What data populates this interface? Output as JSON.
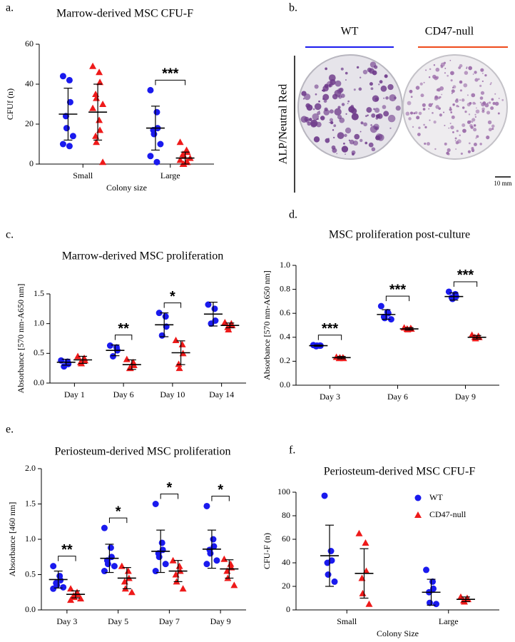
{
  "chart_data": [
    {
      "type": "dot",
      "panel": "a.",
      "title": "Marrow-derived MSC CFU-F",
      "xlabel": "Colony size",
      "ylabel": "CFUf (n)",
      "categories": [
        "Small",
        "Large"
      ],
      "ylim": [
        0,
        60
      ],
      "yticks": [
        0,
        20,
        40,
        60
      ],
      "series": [
        {
          "color": "#1a1aee",
          "marker": "circle",
          "points": [
            [
              44,
              42,
              31,
              24,
              18,
              14,
              10,
              9
            ],
            [
              37,
              26,
              18,
              17,
              15,
              10,
              4,
              1
            ]
          ],
          "mean": [
            25,
            18
          ],
          "sd": [
            13,
            11
          ]
        },
        {
          "color": "#ee1a1a",
          "marker": "triangle",
          "points": [
            [
              49,
              46,
              41,
              35,
              33,
              30,
              28,
              22,
              17,
              14,
              11,
              1
            ],
            [
              11,
              7,
              6,
              5,
              4,
              3,
              2,
              1,
              1,
              0,
              0
            ]
          ],
          "mean": [
            26,
            3
          ],
          "sd": [
            14,
            3
          ]
        }
      ],
      "significance": [
        null,
        "***"
      ]
    },
    {
      "type": "dot",
      "panel": "c.",
      "title": "Marrow-derived MSC proliferation",
      "ylabel": "Absorbance [570 nm-A650 nm]",
      "categories": [
        "Day 1",
        "Day 6",
        "Day 10",
        "Day 14"
      ],
      "ylim": [
        0,
        1.5
      ],
      "yticks": [
        {
          "value": 0,
          "label": "0.0"
        },
        0.5,
        {
          "value": 1,
          "label": "1.0"
        },
        1.5
      ],
      "series": [
        {
          "color": "#1a1aee",
          "marker": "circle",
          "points": [
            [
              0.38,
              0.36,
              0.32,
              0.28
            ],
            [
              0.63,
              0.6,
              0.55,
              0.45
            ],
            [
              1.18,
              1.12,
              0.95,
              0.8
            ],
            [
              1.32,
              1.25,
              1.05,
              1.0
            ]
          ],
          "mean": [
            0.35,
            0.55,
            0.98,
            1.16
          ],
          "sd": [
            0.05,
            0.09,
            0.2,
            0.2
          ]
        },
        {
          "color": "#ee1a1a",
          "marker": "triangle",
          "points": [
            [
              0.45,
              0.42,
              0.38,
              0.35,
              0.33
            ],
            [
              0.4,
              0.35,
              0.3,
              0.25,
              0.25
            ],
            [
              0.72,
              0.65,
              0.5,
              0.32,
              0.25
            ],
            [
              1.02,
              1.0,
              0.97,
              0.94,
              0.9
            ]
          ],
          "mean": [
            0.39,
            0.31,
            0.51,
            0.97
          ],
          "sd": [
            0.06,
            0.08,
            0.2,
            0.04
          ]
        }
      ],
      "significance": [
        null,
        "**",
        "*",
        null
      ]
    },
    {
      "type": "dot",
      "panel": "d.",
      "title": "MSC proliferation post-culture",
      "ylabel": "Absorbance [570 nm-A650 nm]",
      "categories": [
        "Day 3",
        "Day 6",
        "Day 9"
      ],
      "ylim": [
        0,
        1
      ],
      "yticks": [
        {
          "value": 0,
          "label": "0.0"
        },
        0.2,
        0.4,
        0.6,
        0.8,
        {
          "value": 1,
          "label": "1.0"
        }
      ],
      "series": [
        {
          "color": "#1a1aee",
          "marker": "circle",
          "points": [
            [
              0.335,
              0.33,
              0.33,
              0.325,
              0.33
            ],
            [
              0.66,
              0.61,
              0.6,
              0.57,
              0.56,
              0.55
            ],
            [
              0.78,
              0.76,
              0.74,
              0.73,
              0.72
            ]
          ],
          "mean": [
            0.33,
            0.59,
            0.74
          ],
          "sd": [
            0.005,
            0.04,
            0.03
          ]
        },
        {
          "color": "#ee1a1a",
          "marker": "triangle",
          "points": [
            [
              0.235,
              0.23,
              0.225,
              0.225,
              0.23
            ],
            [
              0.48,
              0.475,
              0.47,
              0.47,
              0.465
            ],
            [
              0.42,
              0.41,
              0.4,
              0.4,
              0.39
            ]
          ],
          "mean": [
            0.23,
            0.47,
            0.4
          ],
          "sd": [
            0.01,
            0.01,
            0.015
          ]
        }
      ],
      "significance": [
        "***",
        "***",
        "***"
      ]
    },
    {
      "type": "dot",
      "panel": "e.",
      "title": "Periosteum-derived MSC proliferation",
      "ylabel": "Absorbance [460 nm]",
      "categories": [
        "Day 3",
        "Day 5",
        "Day 7",
        "Day 9"
      ],
      "ylim": [
        0,
        2
      ],
      "yticks": [
        {
          "value": 0,
          "label": "0.0"
        },
        0.5,
        {
          "value": 1,
          "label": "1.0"
        },
        1.5,
        {
          "value": 2,
          "label": "2.0"
        }
      ],
      "series": [
        {
          "color": "#1a1aee",
          "marker": "circle",
          "points": [
            [
              0.62,
              0.48,
              0.42,
              0.38,
              0.35,
              0.32,
              0.3
            ],
            [
              1.16,
              0.88,
              0.75,
              0.7,
              0.65,
              0.62,
              0.55
            ],
            [
              1.5,
              0.95,
              0.85,
              0.8,
              0.75,
              0.65,
              0.55
            ],
            [
              1.47,
              1.0,
              0.9,
              0.85,
              0.8,
              0.7,
              0.65
            ]
          ],
          "mean": [
            0.43,
            0.73,
            0.83,
            0.86
          ],
          "sd": [
            0.12,
            0.2,
            0.3,
            0.27
          ]
        },
        {
          "color": "#ee1a1a",
          "marker": "triangle",
          "points": [
            [
              0.3,
              0.25,
              0.22,
              0.2,
              0.18,
              0.16,
              0.14
            ],
            [
              0.62,
              0.55,
              0.45,
              0.4,
              0.3,
              0.25
            ],
            [
              0.7,
              0.62,
              0.55,
              0.5,
              0.4,
              0.3
            ],
            [
              0.72,
              0.65,
              0.6,
              0.55,
              0.45,
              0.35
            ]
          ],
          "mean": [
            0.22,
            0.45,
            0.55,
            0.58
          ],
          "sd": [
            0.05,
            0.15,
            0.15,
            0.13
          ]
        }
      ],
      "significance": [
        "**",
        "*",
        "*",
        "*"
      ]
    },
    {
      "type": "dot",
      "panel": "f.",
      "title": "Periosteum-derived MSC CFU-F",
      "xlabel": "Colony Size",
      "ylabel": "CFU-F (n)",
      "categories": [
        "Small",
        "Large"
      ],
      "ylim": [
        0,
        100
      ],
      "yticks": [
        0,
        20,
        40,
        60,
        80,
        100
      ],
      "series": [
        {
          "name": "WT",
          "color": "#1a1aee",
          "marker": "circle",
          "points": [
            [
              97,
              50,
              42,
              40,
              30,
              24
            ],
            [
              34,
              24,
              18,
              15,
              6,
              5
            ]
          ],
          "mean": [
            46,
            15
          ],
          "sd": [
            26,
            11
          ]
        },
        {
          "name": "CD47-null",
          "color": "#ee1a1a",
          "marker": "triangle",
          "points": [
            [
              65,
              57,
              33,
              27,
              14,
              5
            ],
            [
              11,
              10,
              9,
              8,
              7
            ]
          ],
          "mean": [
            31,
            9
          ],
          "sd": [
            21,
            2
          ]
        }
      ],
      "significance": [
        null,
        null
      ]
    }
  ],
  "image_panel": {
    "panel": "b.",
    "columns": [
      "WT",
      "CD47-null"
    ],
    "side_label": "ALP/Neutral Red",
    "scale_bar": "10 mm"
  }
}
